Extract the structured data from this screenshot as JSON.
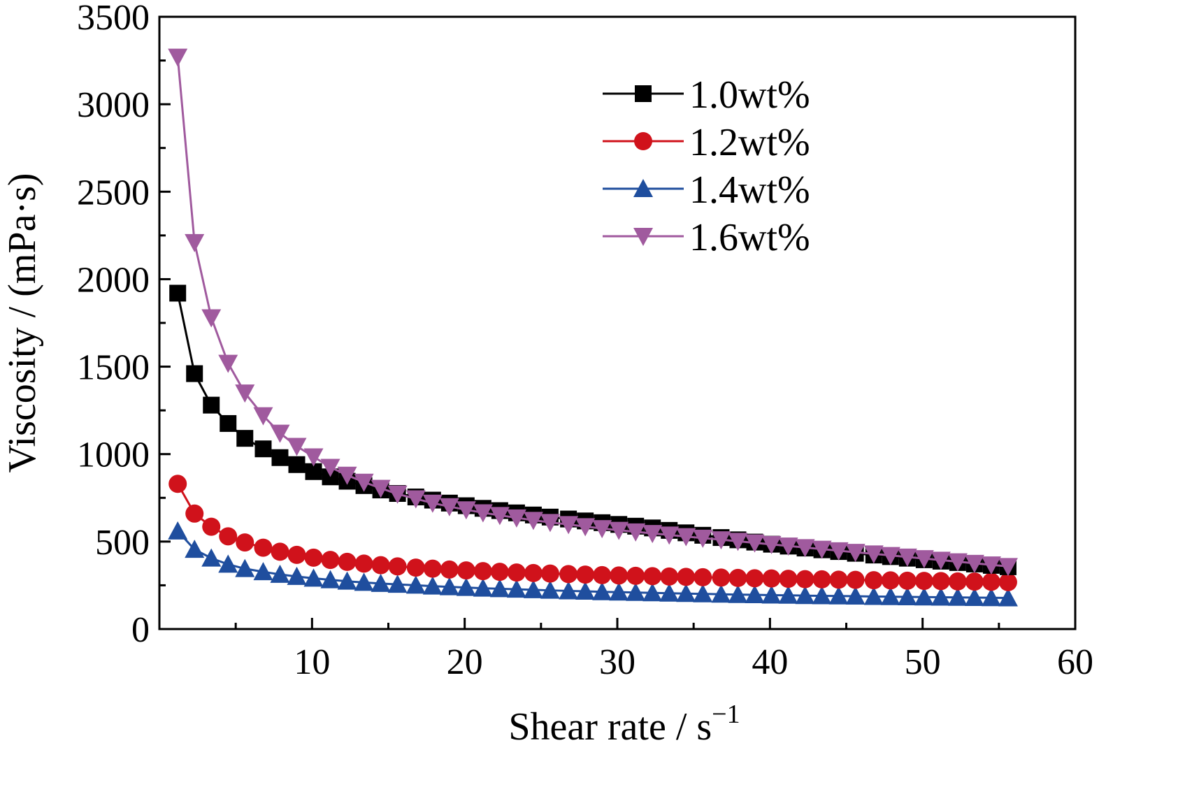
{
  "chart_data": {
    "type": "line",
    "xlabel": "Shear rate / s",
    "xlabel_sup": "−1",
    "ylabel": "Viscosity / (mPa·s)",
    "xlim": [
      0,
      60
    ],
    "ylim": [
      0,
      3500
    ],
    "xticks": [
      10,
      20,
      30,
      40,
      50,
      60
    ],
    "yticks": [
      0,
      500,
      1000,
      1500,
      2000,
      2500,
      3000,
      3500
    ],
    "grid": false,
    "legend_position": "top-right",
    "x": [
      1.2,
      2.3,
      3.4,
      4.5,
      5.6,
      6.8,
      7.9,
      9.0,
      10.1,
      11.2,
      12.3,
      13.4,
      14.5,
      15.6,
      16.8,
      17.9,
      19.0,
      20.1,
      21.2,
      22.3,
      23.4,
      24.5,
      25.6,
      26.8,
      27.9,
      29.0,
      30.1,
      31.2,
      32.3,
      33.4,
      34.5,
      35.6,
      36.8,
      37.9,
      39.0,
      40.1,
      41.2,
      42.3,
      43.4,
      44.5,
      45.6,
      46.8,
      47.9,
      49.0,
      50.1,
      51.2,
      52.3,
      53.4,
      54.5,
      55.6
    ],
    "series": [
      {
        "name": "1.0wt%",
        "color": "#000000",
        "marker": "square",
        "values": [
          1920,
          1460,
          1280,
          1175,
          1090,
          1030,
          980,
          940,
          900,
          870,
          845,
          820,
          795,
          775,
          755,
          737,
          720,
          705,
          690,
          677,
          664,
          652,
          640,
          629,
          618,
          608,
          598,
          588,
          578,
          564,
          550,
          536,
          523,
          510,
          497,
          485,
          474,
          463,
          453,
          443,
          433,
          423,
          414,
          405,
          396,
          388,
          380,
          372,
          364,
          356
        ]
      },
      {
        "name": "1.2wt%",
        "color": "#d0121b",
        "marker": "circle",
        "values": [
          830,
          660,
          585,
          530,
          495,
          465,
          442,
          424,
          408,
          395,
          384,
          374,
          365,
          358,
          351,
          345,
          340,
          335,
          331,
          327,
          323,
          320,
          317,
          314,
          311,
          308,
          306,
          304,
          302,
          300,
          298,
          296,
          294,
          292,
          290,
          289,
          287,
          285,
          284,
          282,
          281,
          279,
          278,
          276,
          275,
          274,
          272,
          271,
          270,
          268
        ]
      },
      {
        "name": "1.4wt%",
        "color": "#1f4e9e",
        "marker": "triangle-up",
        "values": [
          560,
          455,
          405,
          370,
          345,
          327,
          312,
          300,
          290,
          281,
          273,
          266,
          260,
          255,
          250,
          245,
          241,
          237,
          233,
          230,
          227,
          224,
          221,
          218,
          216,
          213,
          211,
          209,
          207,
          205,
          203,
          201,
          199,
          197,
          196,
          194,
          193,
          191,
          190,
          189,
          188,
          186,
          185,
          184,
          183,
          182,
          181,
          180,
          179,
          178
        ]
      },
      {
        "name": "1.6wt%",
        "color": "#a05a9e",
        "marker": "triangle-down",
        "values": [
          3270,
          2210,
          1780,
          1520,
          1350,
          1220,
          1120,
          1045,
          985,
          925,
          880,
          840,
          805,
          772,
          745,
          720,
          700,
          682,
          665,
          650,
          636,
          622,
          610,
          598,
          586,
          575,
          565,
          556,
          547,
          538,
          529,
          520,
          511,
          502,
          493,
          484,
          475,
          466,
          457,
          448,
          439,
          430,
          421,
          412,
          403,
          394,
          385,
          376,
          367,
          358
        ]
      }
    ]
  }
}
